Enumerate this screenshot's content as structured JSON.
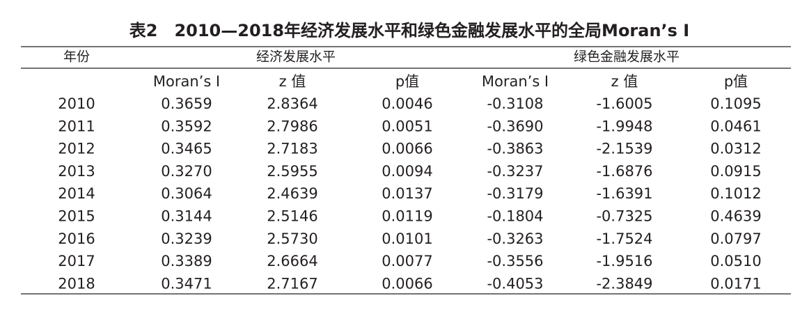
{
  "title": "表2　2010—2018年经济发展水平和绿色金融发展水平的全局Moran’s I",
  "table": {
    "year_header": "年份",
    "groups": [
      "经济发展水平",
      "绿色金融发展水平"
    ],
    "subheaders": [
      "Moran’s I",
      "z 值",
      "p值",
      "Moran’s I",
      "z 值",
      "p值"
    ],
    "rows": [
      [
        "2010",
        "0.3659",
        "2.8364",
        "0.0046",
        "-0.3108",
        "-1.6005",
        "0.1095"
      ],
      [
        "2011",
        "0.3592",
        "2.7986",
        "0.0051",
        "-0.3690",
        "-1.9948",
        "0.0461"
      ],
      [
        "2012",
        "0.3465",
        "2.7183",
        "0.0066",
        "-0.3863",
        "-2.1539",
        "0.0312"
      ],
      [
        "2013",
        "0.3270",
        "2.5955",
        "0.0094",
        "-0.3237",
        "-1.6876",
        "0.0915"
      ],
      [
        "2014",
        "0.3064",
        "2.4639",
        "0.0137",
        "-0.3179",
        "-1.6391",
        "0.1012"
      ],
      [
        "2015",
        "0.3144",
        "2.5146",
        "0.0119",
        "-0.1804",
        "-0.7325",
        "0.4639"
      ],
      [
        "2016",
        "0.3239",
        "2.5730",
        "0.0101",
        "-0.3263",
        "-1.7524",
        "0.0797"
      ],
      [
        "2017",
        "0.3389",
        "2.6664",
        "0.0077",
        "-0.3556",
        "-1.9516",
        "0.0510"
      ],
      [
        "2018",
        "0.3471",
        "2.7167",
        "0.0066",
        "-0.4053",
        "-2.3849",
        "0.0171"
      ]
    ]
  }
}
